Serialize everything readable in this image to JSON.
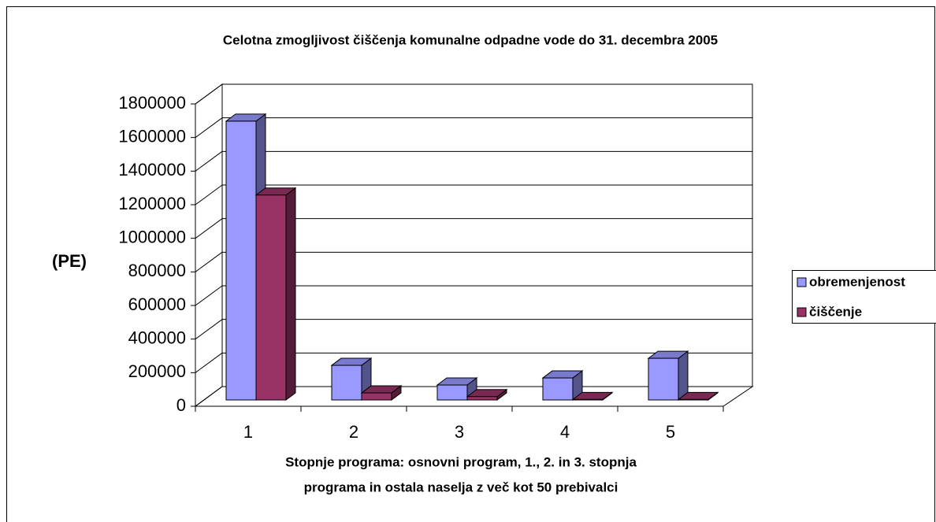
{
  "chart_data": {
    "type": "bar3d",
    "title": "Celotna zmogljivost čiščenja komunalne odpadne vode do 31. decembra 2005",
    "ylabel": "(PE)",
    "xlabel": [
      "Stopnje programa: osnovni program, 1., 2. in 3. stopnja",
      "programa in ostala naselja z več kot 50 prebivalci"
    ],
    "categories": [
      "1",
      "2",
      "3",
      "4",
      "5"
    ],
    "series": [
      {
        "name": "obremenjenost",
        "color": "#9999ff",
        "values": [
          1660000,
          206000,
          89000,
          131000,
          248000
        ]
      },
      {
        "name": "čiščenje",
        "color": "#993366",
        "values": [
          1220000,
          42000,
          20000,
          3000,
          3000
        ]
      }
    ],
    "ylim": [
      0,
      1800000
    ],
    "yticks": [
      0,
      200000,
      400000,
      600000,
      800000,
      1000000,
      1200000,
      1400000,
      1600000,
      1800000
    ],
    "grid": true,
    "legend": "right"
  }
}
